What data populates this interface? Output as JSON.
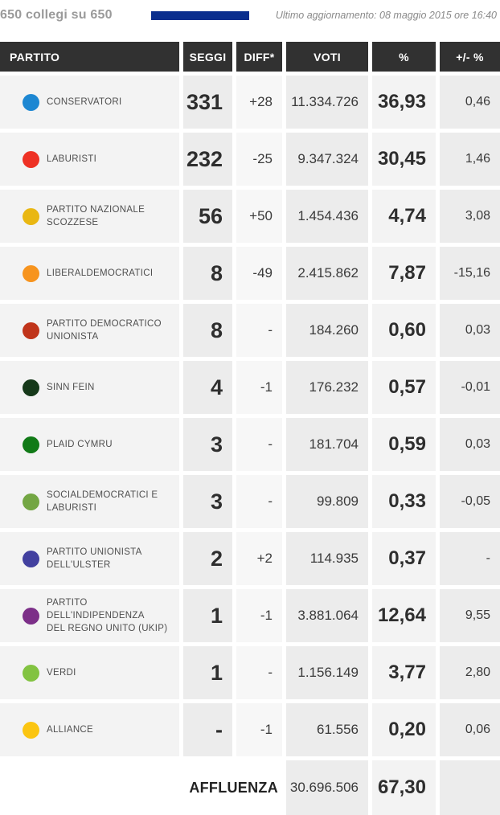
{
  "topbar": {
    "progress_label": "650 collegi su 650",
    "last_update": "Ultimo aggiornamento: 08 maggio 2015 ore 16:40",
    "progress_bar_color": "#0a2e8e"
  },
  "table": {
    "headers": [
      "PARTITO",
      "SEGGI",
      "DIFF*",
      "VOTI",
      "%",
      "+/- %"
    ],
    "header_bg": "#313131",
    "rows": [
      {
        "party": "CONSERVATORI",
        "color": "#1d87d2",
        "seggi": "331",
        "diff": "+28",
        "voti": "11.334.726",
        "pct": "36,93",
        "delta": "0,46"
      },
      {
        "party": "LABURISTI",
        "color": "#ee3124",
        "seggi": "232",
        "diff": "-25",
        "voti": "9.347.324",
        "pct": "30,45",
        "delta": "1,46"
      },
      {
        "party": "PARTITO NAZIONALE\nSCOZZESE",
        "color": "#e9b712",
        "seggi": "56",
        "diff": "+50",
        "voti": "1.454.436",
        "pct": "4,74",
        "delta": "3,08"
      },
      {
        "party": "LIBERALDEMOCRATICI",
        "color": "#f7941e",
        "seggi": "8",
        "diff": "-49",
        "voti": "2.415.862",
        "pct": "7,87",
        "delta": "-15,16"
      },
      {
        "party": "PARTITO DEMOCRATICO\nUNIONISTA",
        "color": "#c0341a",
        "seggi": "8",
        "diff": "-",
        "voti": "184.260",
        "pct": "0,60",
        "delta": "0,03"
      },
      {
        "party": "SINN FEIN",
        "color": "#16391a",
        "seggi": "4",
        "diff": "-1",
        "voti": "176.232",
        "pct": "0,57",
        "delta": "-0,01"
      },
      {
        "party": "PLAID CYMRU",
        "color": "#117a17",
        "seggi": "3",
        "diff": "-",
        "voti": "181.704",
        "pct": "0,59",
        "delta": "0,03"
      },
      {
        "party": "SOCIALDEMOCRATICI E\nLABURISTI",
        "color": "#73a643",
        "seggi": "3",
        "diff": "-",
        "voti": "99.809",
        "pct": "0,33",
        "delta": "-0,05"
      },
      {
        "party": "PARTITO UNIONISTA\nDELL'ULSTER",
        "color": "#42409f",
        "seggi": "2",
        "diff": "+2",
        "voti": "114.935",
        "pct": "0,37",
        "delta": "-"
      },
      {
        "party": "PARTITO DELL'INDIPENDENZA\nDEL REGNO UNITO (UKIP)",
        "color": "#7c2f88",
        "seggi": "1",
        "diff": "-1",
        "voti": "3.881.064",
        "pct": "12,64",
        "delta": "9,55"
      },
      {
        "party": "VERDI",
        "color": "#82c341",
        "seggi": "1",
        "diff": "-",
        "voti": "1.156.149",
        "pct": "3,77",
        "delta": "2,80"
      },
      {
        "party": "ALLIANCE",
        "color": "#fbc511",
        "seggi": "-",
        "diff": "-1",
        "voti": "61.556",
        "pct": "0,20",
        "delta": "0,06"
      }
    ],
    "footer": {
      "label": "AFFLUENZA",
      "voti": "30.696.506",
      "pct": "67,30",
      "delta": ""
    }
  }
}
